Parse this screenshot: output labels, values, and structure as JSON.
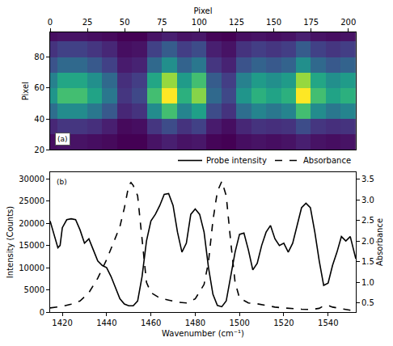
{
  "chart_data": [
    {
      "type": "heatmap",
      "panel": "(a)",
      "xlabel": "Pixel",
      "ylabel": "Pixel",
      "color": "Viridis",
      "grid": false,
      "x": [
        0,
        10,
        20,
        30,
        40,
        50,
        60,
        70,
        80,
        90,
        100,
        110,
        120,
        130,
        140,
        150,
        160,
        170,
        180,
        190,
        200
      ],
      "y": [
        25,
        35,
        45,
        55,
        65,
        75,
        85,
        95
      ],
      "cells": [
        [
          5,
          6,
          6,
          5,
          4,
          2,
          2,
          6,
          9,
          6,
          7,
          3,
          2,
          5,
          6,
          5,
          6,
          9,
          6,
          5,
          6
        ],
        [
          11,
          15,
          15,
          13,
          9,
          4,
          5,
          15,
          21,
          14,
          18,
          8,
          5,
          11,
          14,
          13,
          14,
          21,
          15,
          13,
          14
        ],
        [
          32,
          42,
          42,
          35,
          25,
          11,
          14,
          42,
          60,
          39,
          49,
          21,
          14,
          32,
          39,
          35,
          39,
          60,
          42,
          35,
          39
        ],
        [
          45,
          60,
          60,
          50,
          35,
          15,
          20,
          60,
          85,
          55,
          70,
          30,
          20,
          45,
          55,
          50,
          55,
          85,
          60,
          50,
          55
        ],
        [
          38,
          51,
          51,
          43,
          30,
          13,
          17,
          51,
          72,
          47,
          60,
          26,
          17,
          38,
          47,
          43,
          47,
          72,
          51,
          43,
          47
        ],
        [
          23,
          30,
          30,
          25,
          18,
          8,
          10,
          30,
          43,
          28,
          35,
          15,
          10,
          23,
          28,
          25,
          28,
          43,
          30,
          25,
          28
        ],
        [
          14,
          18,
          18,
          15,
          11,
          5,
          6,
          18,
          26,
          17,
          21,
          9,
          6,
          14,
          17,
          15,
          17,
          26,
          18,
          15,
          17
        ],
        [
          5,
          6,
          6,
          5,
          4,
          2,
          2,
          6,
          9,
          6,
          7,
          3,
          2,
          5,
          6,
          5,
          6,
          9,
          6,
          5,
          6
        ]
      ],
      "xlim": [
        0,
        205
      ],
      "xticks": [
        0,
        25,
        50,
        75,
        100,
        125,
        150,
        175,
        200
      ],
      "ylim": [
        20,
        96
      ],
      "yticks": [
        20,
        40,
        60,
        80
      ]
    },
    {
      "type": "line",
      "panel": "(b)",
      "xlabel": "Wavenumber (cm⁻¹)",
      "ylabel": "Intensity (Counts)",
      "y2label": "Absorbance",
      "grid": false,
      "legend": "top right",
      "xlim": [
        1414.5,
        1552.5
      ],
      "xticks": [
        1420,
        1440,
        1460,
        1480,
        1500,
        1520,
        1540
      ],
      "ylim": [
        0,
        31500
      ],
      "yticks": [
        0,
        5000,
        10000,
        15000,
        20000,
        25000,
        30000
      ],
      "y2lim": [
        0.28,
        3.67
      ],
      "y2ticks": [
        0.5,
        {
          "value": 1,
          "label": "1.0"
        },
        1.5,
        {
          "value": 2,
          "label": "2.0"
        },
        2.5,
        {
          "value": 3,
          "label": "3.0"
        },
        3.5
      ],
      "series": [
        {
          "name": "Probe intensity",
          "color": "#000000",
          "line_style": "solid",
          "x": [
            1414.5,
            1416,
            1418,
            1419,
            1420,
            1422,
            1424,
            1426,
            1428,
            1430,
            1432,
            1434,
            1436,
            1438,
            1440,
            1442,
            1444,
            1446,
            1448,
            1450,
            1452,
            1454,
            1456,
            1458,
            1460,
            1462,
            1464,
            1466,
            1468,
            1470,
            1472,
            1474,
            1476,
            1478,
            1480,
            1482,
            1484,
            1486,
            1488,
            1490,
            1492,
            1494,
            1496,
            1498,
            1500,
            1502,
            1504,
            1506,
            1508,
            1510,
            1512,
            1514,
            1516,
            1518,
            1520,
            1522,
            1524,
            1526,
            1528,
            1530,
            1532,
            1534,
            1536,
            1538,
            1540,
            1542,
            1544,
            1546,
            1548,
            1550,
            1552.5
          ],
          "values": [
            20500,
            18000,
            14500,
            15000,
            19000,
            20800,
            21000,
            20800,
            18500,
            15500,
            16500,
            14000,
            11500,
            10500,
            10000,
            8000,
            5500,
            3000,
            1800,
            1400,
            1400,
            2500,
            8000,
            16000,
            20500,
            22000,
            24000,
            26500,
            26700,
            24000,
            18000,
            13500,
            15500,
            22000,
            23200,
            22000,
            18000,
            10000,
            4000,
            1500,
            1200,
            2500,
            8000,
            13500,
            17500,
            17800,
            14000,
            9500,
            11000,
            15000,
            18000,
            19500,
            16500,
            15000,
            15500,
            13500,
            15500,
            19500,
            23500,
            24500,
            23500,
            18000,
            11500,
            6000,
            6500,
            10500,
            13500,
            17000,
            16000,
            17000,
            12000
          ]
        },
        {
          "name": "Absorbance",
          "color": "#000000",
          "line_style": "dashed",
          "axis": "y2",
          "x": [
            1414.5,
            1420,
            1424,
            1428,
            1432,
            1436,
            1440,
            1444,
            1446,
            1448,
            1450,
            1451,
            1452,
            1454,
            1456,
            1458,
            1460,
            1464,
            1468,
            1472,
            1476,
            1480,
            1484,
            1486,
            1488,
            1490,
            1492,
            1494,
            1496,
            1498,
            1500,
            1504,
            1508,
            1512,
            1516,
            1520,
            1524,
            1528,
            1532,
            1536,
            1538,
            1540,
            1542,
            1546,
            1550,
            1552.5
          ],
          "values": [
            0.38,
            0.42,
            0.47,
            0.55,
            0.75,
            1.1,
            1.55,
            2.1,
            2.35,
            2.8,
            3.35,
            3.42,
            3.35,
            3.1,
            2.1,
            1.0,
            0.75,
            0.62,
            0.57,
            0.52,
            0.5,
            0.6,
            0.95,
            1.5,
            2.5,
            3.2,
            3.45,
            3.1,
            2.0,
            1.0,
            0.62,
            0.5,
            0.48,
            0.44,
            0.4,
            0.38,
            0.36,
            0.35,
            0.34,
            0.37,
            0.43,
            0.44,
            0.4,
            0.36,
            0.33,
            0.3
          ]
        }
      ]
    }
  ]
}
